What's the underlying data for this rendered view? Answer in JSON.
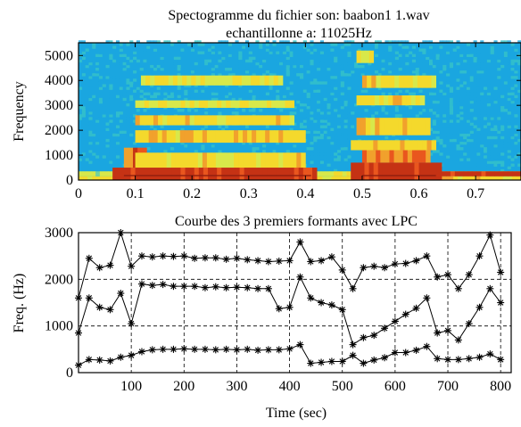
{
  "chart_data": [
    {
      "type": "heatmap",
      "title": "Spectogramme du fichier son: baabon1 1.wav",
      "subtitle": "echantillonne a: 11025Hz",
      "xlabel": "",
      "ylabel": "Frequency",
      "xlim": [
        0,
        0.78
      ],
      "ylim": [
        0,
        5512
      ],
      "xticks": [
        0,
        0.1,
        0.2,
        0.3,
        0.4,
        0.5,
        0.6,
        0.7
      ],
      "xtick_labels": [
        "0",
        "0.1",
        "0.2",
        "0.3",
        "0.4",
        "0.5",
        "0.6",
        "0.7"
      ],
      "yticks": [
        0,
        1000,
        2000,
        3000,
        4000,
        5000
      ],
      "ytick_labels": [
        "0",
        "1000",
        "2000",
        "3000",
        "4000",
        "5000"
      ],
      "grid": false,
      "colormap": [
        "#1aa6e0",
        "#36c3c8",
        "#74d39b",
        "#d8e84a",
        "#f4d92c",
        "#f1a12c",
        "#e9561e",
        "#c53214"
      ],
      "segments": [
        {
          "start": 0.06,
          "end": 0.42,
          "low_energy_top": 500,
          "formant_bands": [
            [
              600,
              1100
            ],
            [
              1500,
              2000
            ],
            [
              2200,
              2600
            ],
            [
              2900,
              3200
            ],
            [
              3800,
              4200
            ]
          ]
        },
        {
          "start": 0.48,
          "end": 0.64,
          "low_energy_top": 1100,
          "formant_bands": [
            [
              1200,
              1600
            ],
            [
              1800,
              2500
            ],
            [
              3000,
              3400
            ],
            [
              3700,
              4200
            ],
            [
              4700,
              5200
            ]
          ]
        }
      ],
      "bands": [
        {
          "t0": 0.0,
          "t1": 0.78,
          "f0": 0,
          "f1": 150,
          "level": 0.55
        },
        {
          "t0": 0.0,
          "t1": 0.06,
          "f0": 150,
          "f1": 350,
          "level": 0.45
        },
        {
          "t0": 0.42,
          "t1": 0.48,
          "f0": 150,
          "f1": 350,
          "level": 0.45
        },
        {
          "t0": 0.64,
          "t1": 0.78,
          "f0": 150,
          "f1": 350,
          "level": 0.5
        },
        {
          "t0": 0.06,
          "t1": 0.42,
          "f0": 0,
          "f1": 500,
          "level": 0.92
        },
        {
          "t0": 0.08,
          "t1": 0.12,
          "f0": 500,
          "f1": 1300,
          "level": 0.8
        },
        {
          "t0": 0.1,
          "t1": 0.4,
          "f0": 500,
          "f1": 1100,
          "level": 0.55
        },
        {
          "t0": 0.1,
          "t1": 0.4,
          "f0": 1500,
          "f1": 2000,
          "level": 0.58
        },
        {
          "t0": 0.1,
          "t1": 0.38,
          "f0": 2200,
          "f1": 2600,
          "level": 0.55
        },
        {
          "t0": 0.1,
          "t1": 0.38,
          "f0": 2900,
          "f1": 3200,
          "level": 0.5
        },
        {
          "t0": 0.11,
          "t1": 0.36,
          "f0": 3800,
          "f1": 4200,
          "level": 0.5
        },
        {
          "t0": 0.48,
          "t1": 0.64,
          "f0": 0,
          "f1": 700,
          "level": 0.92
        },
        {
          "t0": 0.5,
          "t1": 0.62,
          "f0": 700,
          "f1": 1200,
          "level": 0.75
        },
        {
          "t0": 0.48,
          "t1": 0.63,
          "f0": 1200,
          "f1": 1600,
          "level": 0.6
        },
        {
          "t0": 0.49,
          "t1": 0.62,
          "f0": 1800,
          "f1": 2500,
          "level": 0.58
        },
        {
          "t0": 0.49,
          "t1": 0.61,
          "f0": 3000,
          "f1": 3400,
          "level": 0.55
        },
        {
          "t0": 0.5,
          "t1": 0.63,
          "f0": 3700,
          "f1": 4200,
          "level": 0.55
        },
        {
          "t0": 0.49,
          "t1": 0.52,
          "f0": 4700,
          "f1": 5200,
          "level": 0.5
        },
        {
          "t0": 0.64,
          "t1": 0.78,
          "f0": 150,
          "f1": 350,
          "level": 0.95
        }
      ]
    },
    {
      "type": "line",
      "title": "Courbe des 3 premiers formants avec LPC",
      "xlabel": "Time (sec)",
      "ylabel": "Freq. (Hz)",
      "xlim": [
        0,
        820
      ],
      "ylim": [
        0,
        3000
      ],
      "xticks": [
        100,
        200,
        300,
        400,
        500,
        600,
        700,
        800
      ],
      "xtick_labels": [
        "100",
        "200",
        "300",
        "400",
        "500",
        "600",
        "700",
        "800"
      ],
      "yticks": [
        0,
        1000,
        2000,
        3000
      ],
      "ytick_labels": [
        "0",
        "1000",
        "2000",
        "3000"
      ],
      "grid": true,
      "marker": "*",
      "x": [
        0,
        20,
        40,
        60,
        80,
        100,
        120,
        140,
        160,
        180,
        200,
        220,
        240,
        260,
        280,
        300,
        320,
        340,
        360,
        380,
        400,
        420,
        440,
        460,
        480,
        500,
        520,
        540,
        560,
        580,
        600,
        620,
        640,
        660,
        680,
        700,
        720,
        740,
        760,
        780,
        800
      ],
      "series": [
        {
          "values": [
            1600,
            2450,
            2250,
            2300,
            3000,
            2280,
            2500,
            2480,
            2500,
            2490,
            2500,
            2450,
            2460,
            2460,
            2430,
            2450,
            2420,
            2400,
            2380,
            2390,
            2400,
            2800,
            2380,
            2400,
            2480,
            2200,
            1800,
            2250,
            2280,
            2250,
            2330,
            2340,
            2400,
            2500,
            2050,
            2100,
            1800,
            2100,
            2500,
            2950,
            2150
          ]
        },
        {
          "values": [
            850,
            1600,
            1400,
            1350,
            1700,
            1050,
            1900,
            1870,
            1890,
            1850,
            1850,
            1850,
            1820,
            1840,
            1820,
            1830,
            1820,
            1800,
            1800,
            1370,
            1400,
            2050,
            1600,
            1500,
            1450,
            1350,
            600,
            750,
            800,
            950,
            1100,
            1250,
            1380,
            1600,
            850,
            900,
            700,
            1050,
            1400,
            1800,
            1500
          ]
        },
        {
          "values": [
            160,
            280,
            270,
            250,
            330,
            370,
            450,
            490,
            500,
            500,
            510,
            500,
            500,
            490,
            500,
            490,
            500,
            480,
            490,
            490,
            510,
            600,
            200,
            220,
            240,
            240,
            370,
            200,
            270,
            320,
            430,
            430,
            480,
            560,
            300,
            280,
            280,
            300,
            330,
            400,
            280
          ]
        }
      ]
    }
  ]
}
